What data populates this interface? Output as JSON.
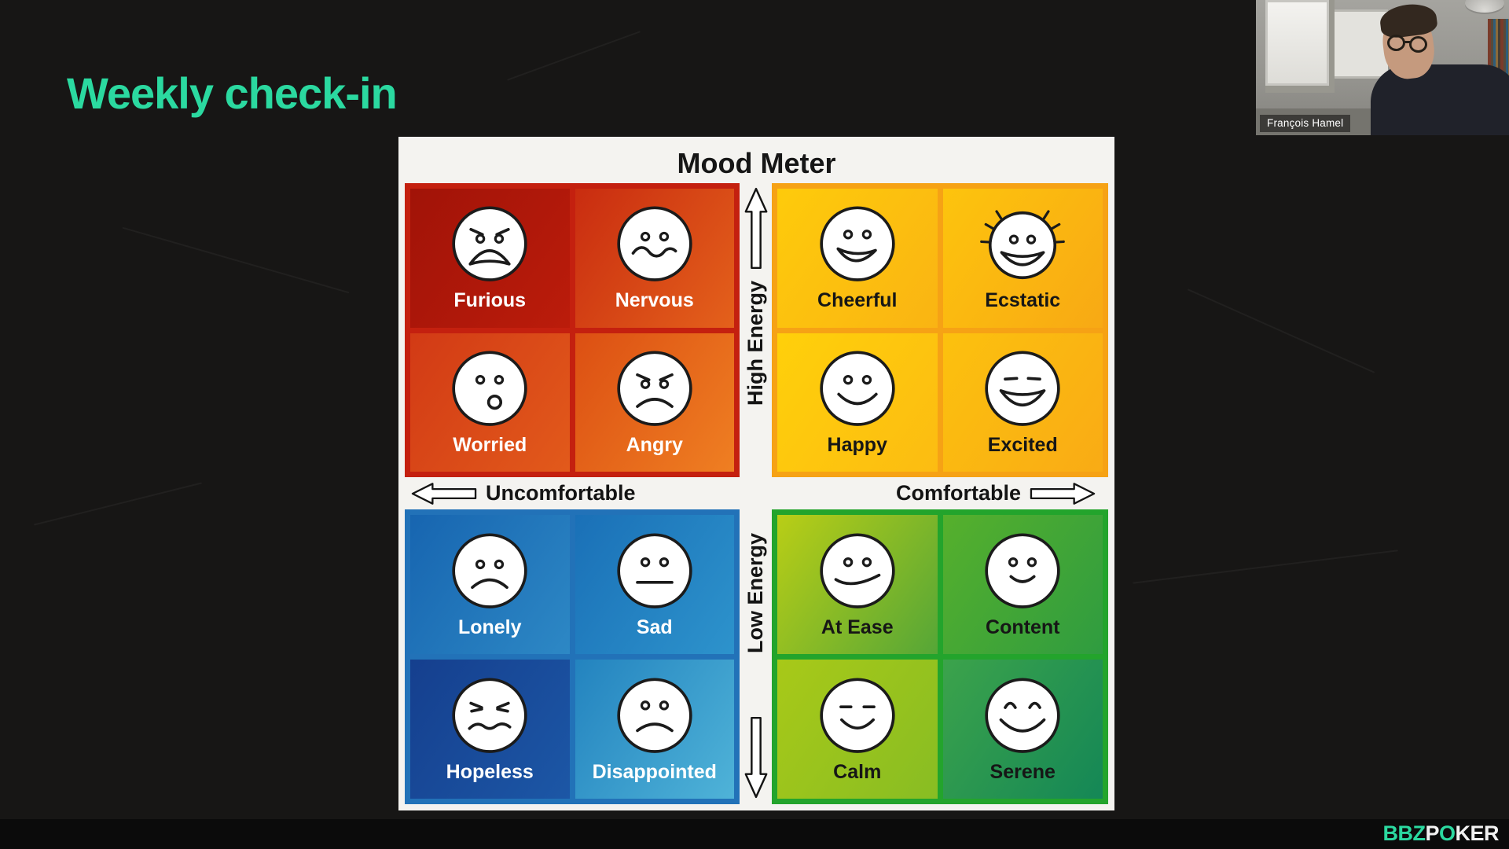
{
  "slide": {
    "title": "Weekly check-in"
  },
  "colors": {
    "background": "#171615",
    "panel_bg": "#f4f3f0",
    "title_accent": "#2bd9a0"
  },
  "mood_meter": {
    "title": "Mood Meter",
    "axes": {
      "high_energy": "High Energy",
      "low_energy": "Low Energy",
      "uncomfortable": "Uncomfortable",
      "comfortable": "Comfortable"
    },
    "quadrants": [
      {
        "name": "high-energy-uncomfortable",
        "frame_color": "#c4200f",
        "label_color": "#ffffff",
        "cells": [
          {
            "label": "Furious",
            "icon": "furious-face-icon",
            "bg_from": "#a11308",
            "bg_to": "#bb1c0b"
          },
          {
            "label": "Nervous",
            "icon": "nervous-face-icon",
            "bg_from": "#c92c10",
            "bg_to": "#e4611b"
          },
          {
            "label": "Worried",
            "icon": "worried-face-icon",
            "bg_from": "#d23a15",
            "bg_to": "#e25a1b"
          },
          {
            "label": "Angry",
            "icon": "angry-face-icon",
            "bg_from": "#dc4f13",
            "bg_to": "#ef7f22"
          }
        ]
      },
      {
        "name": "high-energy-comfortable",
        "frame_color": "#f6a215",
        "label_color": "#161616",
        "cells": [
          {
            "label": "Cheerful",
            "icon": "cheerful-face-icon",
            "bg_from": "#fecb0b",
            "bg_to": "#fab413"
          },
          {
            "label": "Ecstatic",
            "icon": "ecstatic-face-icon",
            "bg_from": "#fdc40d",
            "bg_to": "#f8a914"
          },
          {
            "label": "Happy",
            "icon": "happy-face-icon",
            "bg_from": "#ffd00a",
            "bg_to": "#fcbc12"
          },
          {
            "label": "Excited",
            "icon": "excited-face-icon",
            "bg_from": "#fcc10e",
            "bg_to": "#f9ab15"
          }
        ]
      },
      {
        "name": "low-energy-uncomfortable",
        "frame_color": "#2272b8",
        "label_color": "#ffffff",
        "cells": [
          {
            "label": "Lonely",
            "icon": "lonely-face-icon",
            "bg_from": "#1765b0",
            "bg_to": "#2d88c5"
          },
          {
            "label": "Sad",
            "icon": "sad-face-icon",
            "bg_from": "#1a70b7",
            "bg_to": "#2d93cc"
          },
          {
            "label": "Hopeless",
            "icon": "hopeless-face-icon",
            "bg_from": "#153f8e",
            "bg_to": "#1c57a6"
          },
          {
            "label": "Disappointed",
            "icon": "disappointed-face-icon",
            "bg_from": "#2383bf",
            "bg_to": "#4fb3d8"
          }
        ]
      },
      {
        "name": "low-energy-comfortable",
        "frame_color": "#23a42c",
        "label_color": "#161616",
        "cells": [
          {
            "label": "At Ease",
            "icon": "at-ease-face-icon",
            "bg_from": "#b9ce16",
            "bg_to": "#55a637"
          },
          {
            "label": "Content",
            "icon": "content-face-icon",
            "bg_from": "#56b02c",
            "bg_to": "#2f9c40"
          },
          {
            "label": "Calm",
            "icon": "calm-face-icon",
            "bg_from": "#a8c918",
            "bg_to": "#88bd23"
          },
          {
            "label": "Serene",
            "icon": "serene-face-icon",
            "bg_from": "#3ca34b",
            "bg_to": "#148756"
          }
        ]
      }
    ]
  },
  "webcam": {
    "name_label": "François Hamel"
  },
  "brand": {
    "bbz": "BBZ",
    "p": "P",
    "o": "O",
    "ker": "KER",
    "accent_color": "#2bd9a0"
  }
}
